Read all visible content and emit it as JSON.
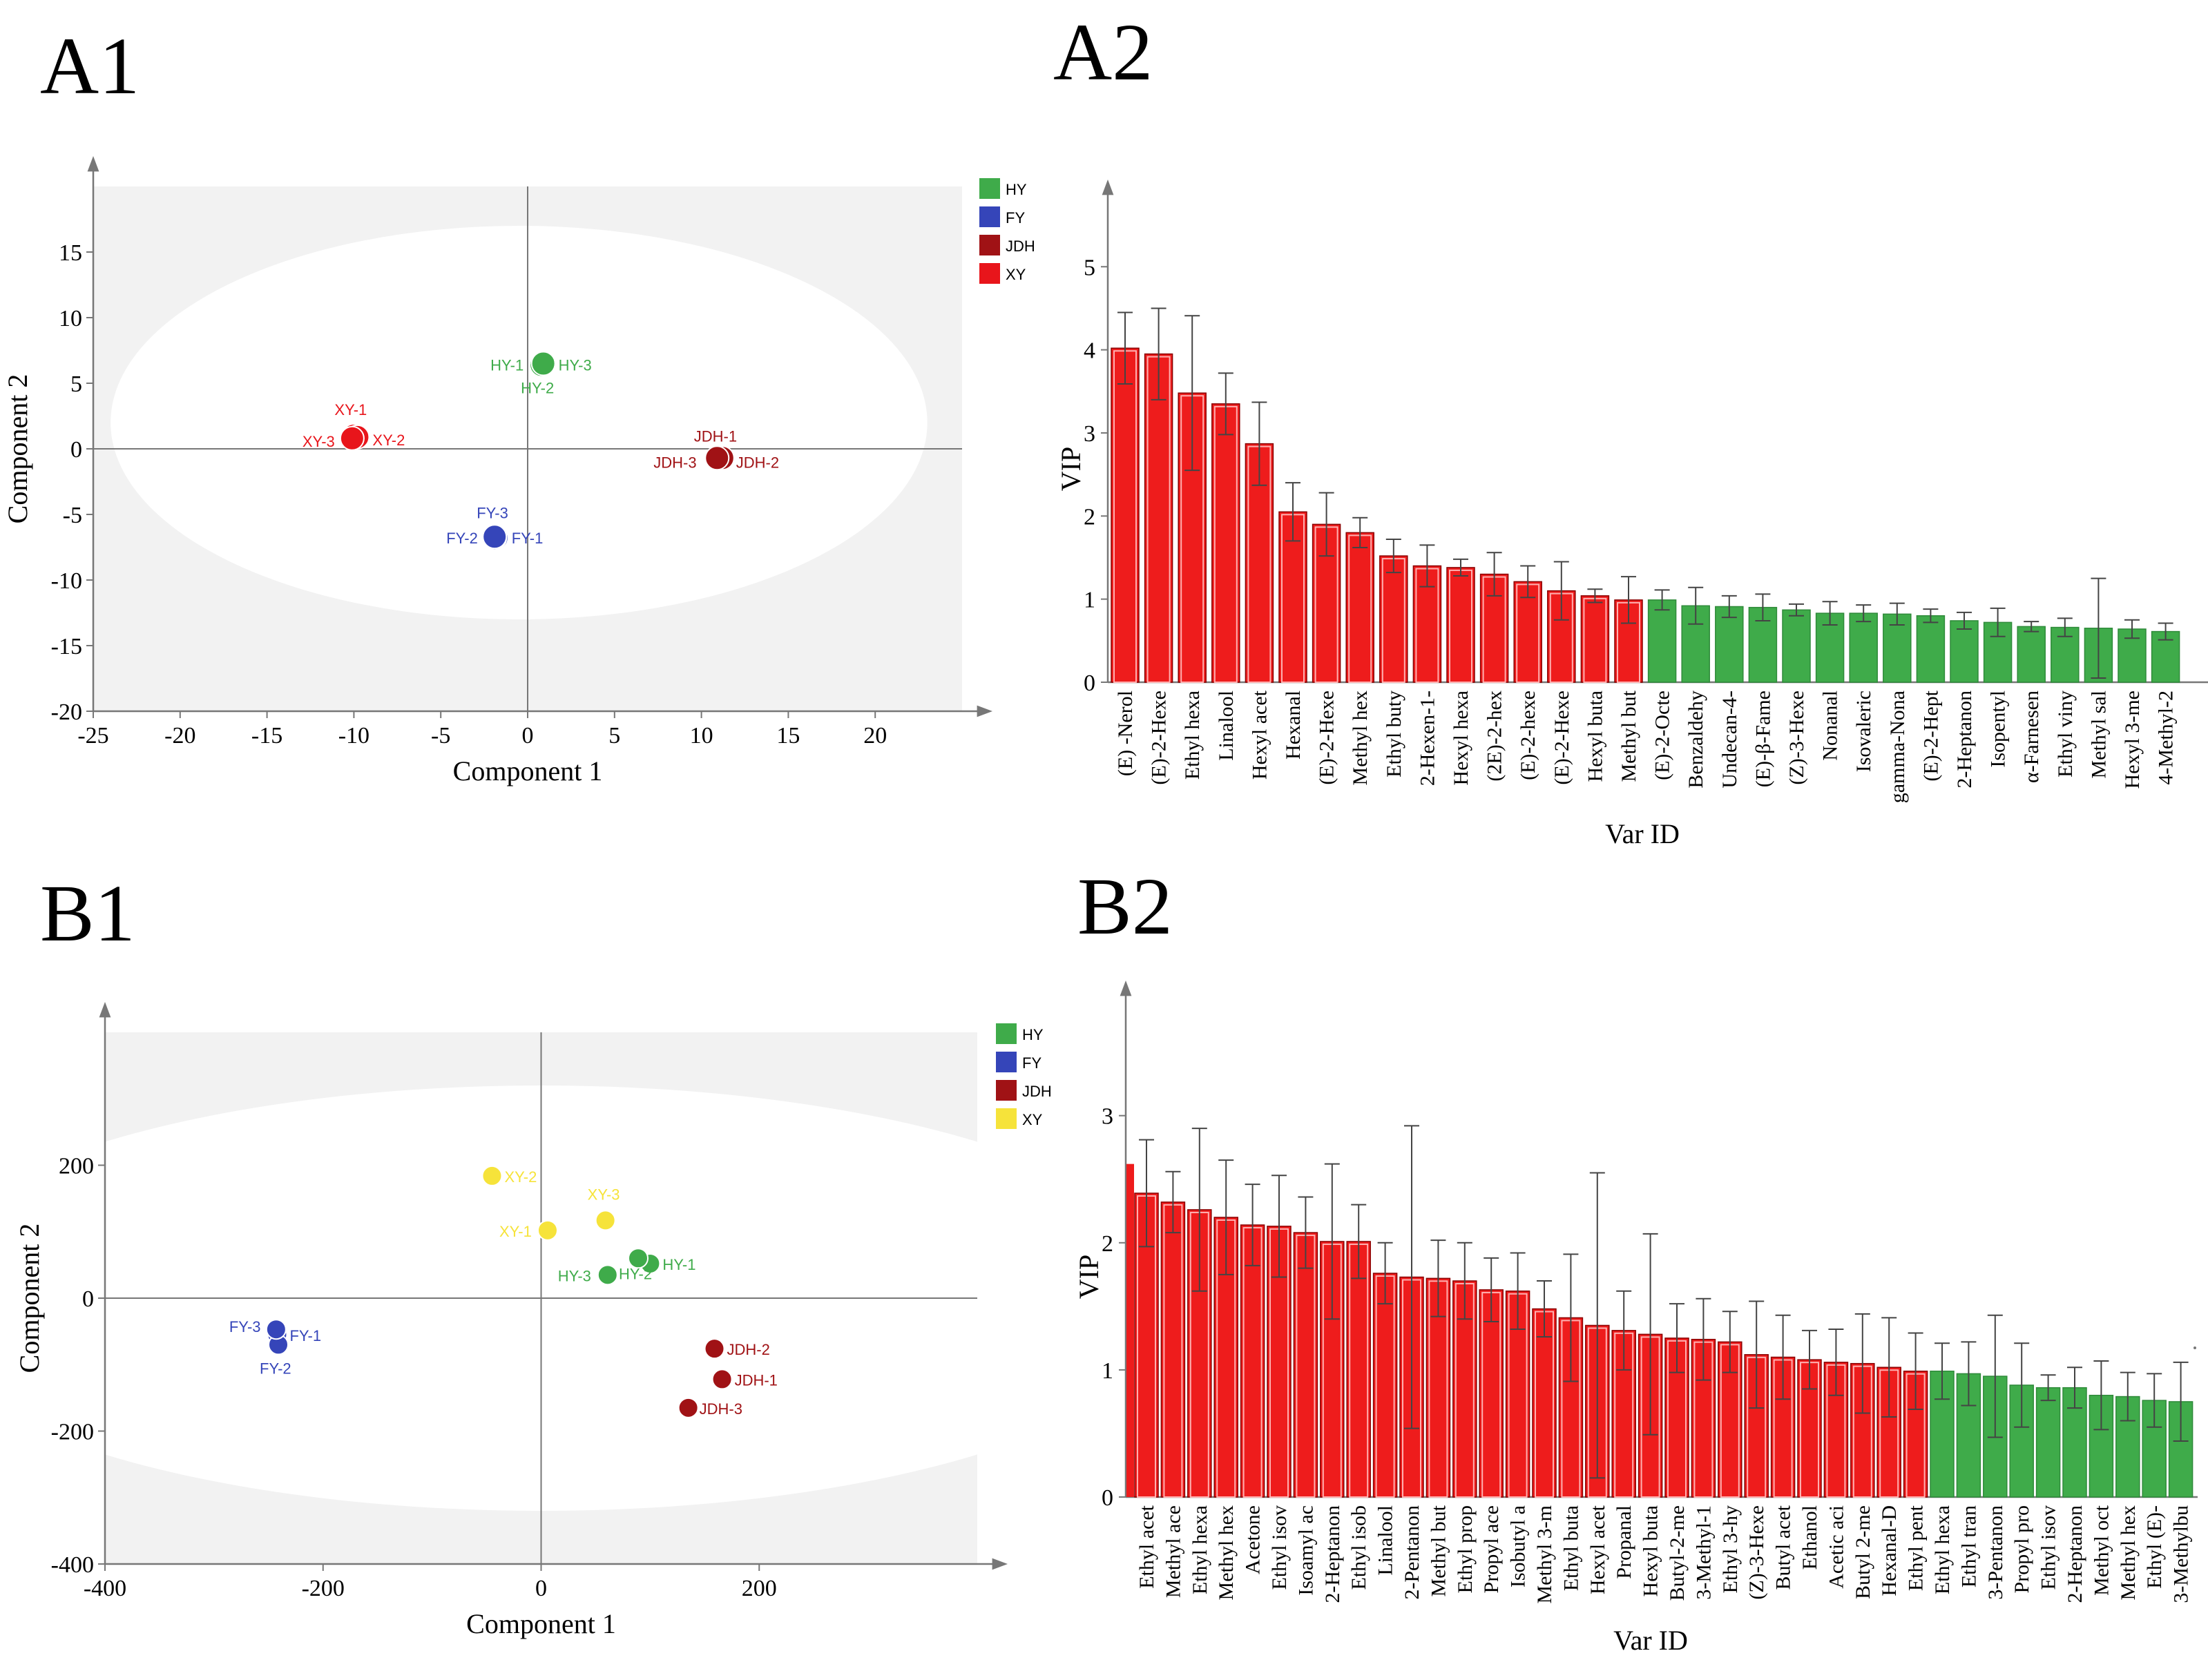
{
  "panels": {
    "a1": "A1",
    "a2": "A2",
    "b1": "B1",
    "b2": "B2"
  },
  "colors": {
    "HY": "#3fab4a",
    "FY": "#3545b9",
    "JDH": "#a01215",
    "XY": "#f6e33a",
    "XY_A1": "#e8151b",
    "bar_red": "#ee1c1c",
    "bar_green": "#3fab4a"
  },
  "chart_data": [
    {
      "id": "A1",
      "type": "scatter",
      "xlabel": "Component 1",
      "ylabel": "Component 2",
      "xlim": [
        -25,
        25
      ],
      "ylim": [
        -20,
        20
      ],
      "xticks": [
        -25,
        -20,
        -15,
        -10,
        -5,
        0,
        5,
        10,
        15,
        20
      ],
      "yticks": [
        -20,
        -15,
        -10,
        -5,
        0,
        5,
        10,
        15
      ],
      "ellipse": {
        "cx": -0.5,
        "cy": 2,
        "rx": 23.5,
        "ry": 15
      },
      "legend": [
        "HY",
        "FY",
        "JDH",
        "XY"
      ],
      "points": [
        {
          "label": "HY-1",
          "group": "HY",
          "x": 0.8,
          "y": 6.5
        },
        {
          "label": "HY-2",
          "group": "HY",
          "x": 0.8,
          "y": 6.4
        },
        {
          "label": "HY-3",
          "group": "HY",
          "x": 0.9,
          "y": 6.5
        },
        {
          "label": "FY-1",
          "group": "FY",
          "x": -1.8,
          "y": -6.8
        },
        {
          "label": "FY-2",
          "group": "FY",
          "x": -1.9,
          "y": -6.8
        },
        {
          "label": "FY-3",
          "group": "FY",
          "x": -1.9,
          "y": -6.7
        },
        {
          "label": "JDH-1",
          "group": "JDH",
          "x": 11.0,
          "y": -0.7
        },
        {
          "label": "JDH-2",
          "group": "JDH",
          "x": 11.2,
          "y": -0.7
        },
        {
          "label": "JDH-3",
          "group": "JDH",
          "x": 10.9,
          "y": -0.7
        },
        {
          "label": "XY-1",
          "group": "XY",
          "x": -10.0,
          "y": 1.0
        },
        {
          "label": "XY-2",
          "group": "XY",
          "x": -9.8,
          "y": 0.9
        },
        {
          "label": "XY-3",
          "group": "XY",
          "x": -10.1,
          "y": 0.8
        }
      ]
    },
    {
      "id": "A2",
      "type": "bar",
      "xlabel": "Var ID",
      "ylabel": "VIP",
      "ylim": [
        0,
        5.8
      ],
      "yticks": [
        0,
        1,
        2,
        3,
        4,
        5
      ],
      "categories": [
        "(E) -Nerol",
        "(E)-2-Hexe",
        "Ethyl hexa",
        "Linalool",
        "Hexyl acet",
        "Hexanal",
        "(E)-2-Hexe",
        "Methyl hex",
        "Ethyl buty",
        "2-Hexen-1-",
        "Hexyl hexa",
        "(2E)-2-hex",
        "(E)-2-hexe",
        "(E)-2-Hexe",
        "Hexyl buta",
        "Methyl but",
        "(E)-2-Octe",
        "Benzaldehy",
        "Undecan-4-",
        "(E)-β-Fame",
        "(Z)-3-Hexe",
        "Nonanal",
        "Isovaleric",
        "gamma-Nona",
        "(E)-2-Hept",
        "2-Heptanon",
        "Isopentyl",
        "α-Farnesen",
        "Ethyl viny",
        "Methyl sal",
        "Hexyl 3-me",
        "4-Methyl-2"
      ],
      "values": [
        4.02,
        3.95,
        3.48,
        3.35,
        2.87,
        2.05,
        1.9,
        1.8,
        1.52,
        1.4,
        1.38,
        1.3,
        1.21,
        1.1,
        1.04,
        0.99,
        0.99,
        0.92,
        0.91,
        0.9,
        0.87,
        0.83,
        0.83,
        0.82,
        0.8,
        0.74,
        0.72,
        0.67,
        0.66,
        0.65,
        0.64,
        0.61
      ],
      "errors": [
        0.43,
        0.55,
        0.93,
        0.37,
        0.5,
        0.35,
        0.38,
        0.18,
        0.2,
        0.25,
        0.1,
        0.26,
        0.19,
        0.35,
        0.08,
        0.28,
        0.12,
        0.22,
        0.13,
        0.16,
        0.07,
        0.14,
        0.1,
        0.13,
        0.08,
        0.1,
        0.17,
        0.06,
        0.11,
        0.6,
        0.11,
        0.1
      ],
      "highlight_count": 16
    },
    {
      "id": "B1",
      "type": "scatter",
      "xlabel": "Component 1",
      "ylabel": "Component 2",
      "xlim": [
        -400,
        400
      ],
      "ylim": [
        -400,
        400
      ],
      "xticks": [
        -400,
        -200,
        0,
        200
      ],
      "yticks": [
        -400,
        -200,
        0,
        200
      ],
      "ellipse": {
        "cx": 0,
        "cy": 0,
        "rx": 590,
        "ry": 320
      },
      "legend": [
        "HY",
        "FY",
        "JDH",
        "XY"
      ],
      "points": [
        {
          "label": "XY-1",
          "group": "XY",
          "x": 6,
          "y": 102
        },
        {
          "label": "XY-2",
          "group": "XY",
          "x": -45,
          "y": 184
        },
        {
          "label": "XY-3",
          "group": "XY",
          "x": 59,
          "y": 117
        },
        {
          "label": "HY-1",
          "group": "HY",
          "x": 100,
          "y": 52
        },
        {
          "label": "HY-2",
          "group": "HY",
          "x": 89,
          "y": 60
        },
        {
          "label": "HY-3",
          "group": "HY",
          "x": 61,
          "y": 35
        },
        {
          "label": "FY-1",
          "group": "FY",
          "x": -242,
          "y": -55
        },
        {
          "label": "FY-2",
          "group": "FY",
          "x": -241,
          "y": -70
        },
        {
          "label": "FY-3",
          "group": "FY",
          "x": -243,
          "y": -47
        },
        {
          "label": "JDH-1",
          "group": "JDH",
          "x": 166,
          "y": -122
        },
        {
          "label": "JDH-2",
          "group": "JDH",
          "x": 159,
          "y": -76
        },
        {
          "label": "JDH-3",
          "group": "JDH",
          "x": 135,
          "y": -165
        }
      ]
    },
    {
      "id": "B2",
      "type": "bar",
      "xlabel": "Var ID",
      "ylabel": "VIP",
      "ylim": [
        0,
        3.9
      ],
      "yticks": [
        0,
        1,
        2,
        3
      ],
      "categories": [
        "Ethyl acet",
        "Methyl ace",
        "Ethyl hexa",
        "Methyl hex",
        "Acetone",
        "Ethyl isov",
        "Isoamyl ac",
        "2-Heptanon",
        "Ethyl isob",
        "Linalool",
        "2-Pentanon",
        "Methyl but",
        "Ethyl prop",
        "Propyl ace",
        "Isobutyl a",
        "Methyl 3-m",
        "Ethyl buta",
        "Hexyl acet",
        "Propanal",
        "Hexyl buta",
        "Butyl-2-me",
        "3-Methyl-1",
        "Ethyl 3-hy",
        "(Z)-3-Hexe",
        "Butyl acet",
        "Ethanol",
        "Acetic aci",
        "Butyl 2-me",
        "Hexanal-D",
        "Ethyl pent",
        "Ethyl hexa",
        "Ethyl tran",
        "3-Pentanon",
        "Propyl pro",
        "Ethyl isov",
        "2-Heptanon",
        "Methyl oct",
        "Methyl hex",
        "Ethyl (E)-",
        "3-Methylbu"
      ],
      "values": [
        2.39,
        2.32,
        2.26,
        2.2,
        2.14,
        2.13,
        2.08,
        2.01,
        2.01,
        1.76,
        1.73,
        1.72,
        1.7,
        1.63,
        1.62,
        1.48,
        1.41,
        1.35,
        1.31,
        1.28,
        1.25,
        1.24,
        1.22,
        1.12,
        1.1,
        1.08,
        1.06,
        1.05,
        1.02,
        0.99,
        0.99,
        0.97,
        0.95,
        0.88,
        0.86,
        0.86,
        0.8,
        0.79,
        0.76,
        0.75
      ],
      "errors": [
        0.42,
        0.24,
        0.64,
        0.45,
        0.32,
        0.4,
        0.28,
        0.61,
        0.29,
        0.24,
        1.19,
        0.3,
        0.3,
        0.25,
        0.3,
        0.22,
        0.5,
        1.2,
        0.31,
        0.79,
        0.27,
        0.32,
        0.24,
        0.42,
        0.33,
        0.23,
        0.26,
        0.39,
        0.39,
        0.3,
        0.22,
        0.25,
        0.48,
        0.33,
        0.1,
        0.16,
        0.27,
        0.19,
        0.21,
        0.31
      ],
      "highlight_count": 30
    }
  ]
}
